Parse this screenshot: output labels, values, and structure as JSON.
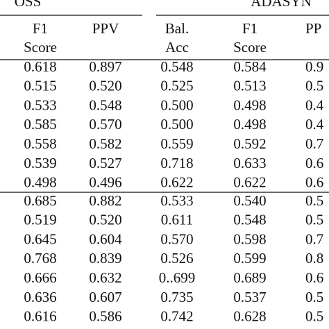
{
  "table": {
    "group_headers": [
      "OSS",
      "ADASYN"
    ],
    "columns": [
      {
        "lines": [
          "F1",
          "Score"
        ]
      },
      {
        "lines": [
          "PPV"
        ]
      },
      {
        "lines": [
          "Bal.",
          "Acc"
        ]
      },
      {
        "lines": [
          "F1",
          "Score"
        ]
      },
      {
        "lines": [
          "PP"
        ]
      }
    ],
    "sections": [
      [
        [
          "0.618",
          "0.897",
          "0.548",
          "0.584",
          "0.9"
        ],
        [
          "0.515",
          "0.520",
          "0.525",
          "0.513",
          "0.5"
        ],
        [
          "0.533",
          "0.548",
          "0.500",
          "0.498",
          "0.4"
        ],
        [
          "0.585",
          "0.570",
          "0.500",
          "0.498",
          "0.4"
        ],
        [
          "0.558",
          "0.582",
          "0.559",
          "0.592",
          "0.7"
        ],
        [
          "0.539",
          "0.527",
          "0.718",
          "0.633",
          "0.6"
        ],
        [
          "0.498",
          "0.496",
          "0.622",
          "0.622",
          "0.6"
        ]
      ],
      [
        [
          "0.685",
          "0.882",
          "0.533",
          "0.540",
          "0.5"
        ],
        [
          "0.519",
          "0.520",
          "0.611",
          "0.548",
          "0.5"
        ],
        [
          "0.645",
          "0.604",
          "0.570",
          "0.598",
          "0.7"
        ],
        [
          "0.768",
          "0.839",
          "0.526",
          "0.599",
          "0.8"
        ],
        [
          "0.666",
          "0.632",
          "0..699",
          "0.689",
          "0.6"
        ],
        [
          "0.636",
          "0.607",
          "0.735",
          "0.537",
          "0.5"
        ],
        [
          "0.616",
          "0.586",
          "0.742",
          "0.628",
          "0.5"
        ]
      ]
    ]
  }
}
